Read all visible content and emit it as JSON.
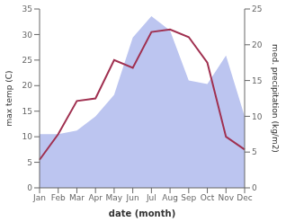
{
  "chart_data": {
    "type": "line",
    "xlabel": "date (month)",
    "ylabel": "max temp (C)",
    "y2label": "med. precipitation (kg/m2)",
    "categories": [
      "Jan",
      "Feb",
      "Mar",
      "Apr",
      "May",
      "Jun",
      "Jul",
      "Aug",
      "Sep",
      "Oct",
      "Nov",
      "Dec"
    ],
    "series": [
      {
        "type": "area",
        "axis": "y2",
        "color": "#bcc5f0",
        "values": [
          7.5,
          7.5,
          8.0,
          10.0,
          13.0,
          21.0,
          24.0,
          22.0,
          15.0,
          14.5,
          18.5,
          10.0
        ]
      },
      {
        "type": "line",
        "color": "#a03050",
        "values": [
          5.5,
          10.5,
          17.0,
          17.5,
          25.0,
          23.5,
          30.5,
          31.0,
          29.5,
          24.5,
          10.0,
          7.5
        ]
      }
    ],
    "ylim": [
      0,
      35
    ],
    "yticks": [
      0,
      5,
      10,
      15,
      20,
      25,
      30,
      35
    ],
    "y2lim": [
      0,
      25
    ],
    "y2ticks": [
      0,
      5,
      10,
      15,
      20,
      25
    ]
  }
}
